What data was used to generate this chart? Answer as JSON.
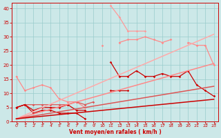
{
  "xlabel": "Vent moyen/en rafales ( km/h )",
  "bg_color": "#cce8e8",
  "grid_color": "#99cccc",
  "x": [
    0,
    1,
    2,
    3,
    4,
    5,
    6,
    7,
    8,
    9,
    10,
    11,
    12,
    13,
    14,
    15,
    16,
    17,
    18,
    19,
    20,
    21,
    22,
    23
  ],
  "series": [
    {
      "name": "lightest_peak",
      "color": "#ff9999",
      "lw": 0.9,
      "marker": "D",
      "ms": 1.8,
      "y": [
        null,
        null,
        null,
        null,
        null,
        null,
        null,
        null,
        null,
        null,
        null,
        41,
        37,
        32,
        32,
        32,
        null,
        null,
        null,
        null,
        null,
        null,
        null,
        null
      ]
    },
    {
      "name": "light_upper",
      "color": "#ff9999",
      "lw": 0.9,
      "marker": "D",
      "ms": 1.8,
      "y": [
        null,
        null,
        null,
        null,
        null,
        null,
        null,
        null,
        null,
        null,
        null,
        null,
        null,
        null,
        null,
        null,
        null,
        null,
        null,
        null,
        null,
        null,
        null,
        null
      ]
    },
    {
      "name": "med_light_long",
      "color": "#ff8888",
      "lw": 0.9,
      "marker": "D",
      "ms": 1.8,
      "y": [
        null,
        null,
        null,
        null,
        null,
        null,
        null,
        null,
        null,
        null,
        27,
        null,
        null,
        null,
        null,
        null,
        null,
        null,
        null,
        null,
        null,
        null,
        null,
        null
      ]
    },
    {
      "name": "med_light_descend",
      "color": "#ff8888",
      "lw": 0.9,
      "marker": "D",
      "ms": 1.8,
      "y": [
        null,
        null,
        null,
        null,
        null,
        null,
        null,
        null,
        null,
        null,
        null,
        null,
        28,
        29,
        29,
        30,
        29,
        28,
        29,
        null,
        28,
        27,
        27,
        20
      ]
    },
    {
      "name": "med_light_start",
      "color": "#ff8888",
      "lw": 0.9,
      "marker": "D",
      "ms": 1.8,
      "y": [
        16,
        11,
        12,
        13,
        12,
        8,
        7,
        7,
        5,
        null,
        null,
        null,
        null,
        null,
        null,
        null,
        null,
        null,
        null,
        null,
        null,
        null,
        null,
        null
      ]
    },
    {
      "name": "medium_line",
      "color": "#dd5555",
      "lw": 0.9,
      "marker": "D",
      "ms": 1.8,
      "y": [
        5,
        6,
        6,
        6,
        6,
        6,
        6,
        7,
        6,
        7,
        null,
        null,
        null,
        null,
        null,
        null,
        null,
        null,
        null,
        null,
        null,
        null,
        null,
        null
      ]
    },
    {
      "name": "dark_main",
      "color": "#cc0000",
      "lw": 0.9,
      "marker": "D",
      "ms": 1.8,
      "y": [
        5,
        6,
        3,
        4,
        4,
        3,
        3,
        3,
        1,
        null,
        null,
        21,
        16,
        16,
        18,
        16,
        16,
        17,
        16,
        16,
        18,
        13,
        11,
        9
      ]
    },
    {
      "name": "dark_short",
      "color": "#cc0000",
      "lw": 0.9,
      "marker": "D",
      "ms": 1.8,
      "y": [
        5,
        6,
        4,
        5,
        5,
        5,
        6,
        4,
        4,
        null,
        null,
        11,
        11,
        11,
        null,
        null,
        null,
        null,
        null,
        null,
        null,
        null,
        null,
        null
      ]
    },
    {
      "name": "slope_lightest",
      "color": "#ffaaaa",
      "lw": 1.1,
      "marker": null,
      "ms": 0,
      "y": [
        1.0,
        2.3,
        3.6,
        4.9,
        6.2,
        7.5,
        8.8,
        10.1,
        11.4,
        12.7,
        14.0,
        15.3,
        16.6,
        17.9,
        19.2,
        20.5,
        21.8,
        23.1,
        24.4,
        25.7,
        27.0,
        28.3,
        29.6,
        30.9
      ]
    },
    {
      "name": "slope_light",
      "color": "#ff8888",
      "lw": 1.1,
      "marker": null,
      "ms": 0,
      "y": [
        1.0,
        1.85,
        2.7,
        3.55,
        4.4,
        5.25,
        6.1,
        6.95,
        7.8,
        8.65,
        9.5,
        10.35,
        11.2,
        12.05,
        12.9,
        13.75,
        14.6,
        15.45,
        16.3,
        17.15,
        18.0,
        18.85,
        19.7,
        20.55
      ]
    },
    {
      "name": "slope_medium",
      "color": "#dd5555",
      "lw": 1.1,
      "marker": null,
      "ms": 0,
      "y": [
        1.0,
        1.5,
        2.0,
        2.5,
        3.0,
        3.5,
        4.0,
        4.5,
        5.0,
        5.5,
        6.0,
        6.5,
        7.0,
        7.5,
        8.0,
        8.5,
        9.0,
        9.5,
        10.0,
        10.5,
        11.0,
        11.5,
        12.0,
        12.5
      ]
    },
    {
      "name": "slope_dark",
      "color": "#cc0000",
      "lw": 1.1,
      "marker": null,
      "ms": 0,
      "y": [
        1.0,
        1.3,
        1.6,
        1.9,
        2.2,
        2.5,
        2.8,
        3.1,
        3.4,
        3.7,
        4.0,
        4.3,
        4.6,
        4.9,
        5.2,
        5.5,
        5.8,
        6.1,
        6.4,
        6.7,
        7.0,
        7.3,
        7.6,
        7.9
      ]
    }
  ],
  "ylim": [
    0,
    42
  ],
  "xlim": [
    -0.5,
    23.5
  ],
  "yticks": [
    0,
    5,
    10,
    15,
    20,
    25,
    30,
    35,
    40
  ],
  "xticks": [
    0,
    1,
    2,
    3,
    4,
    5,
    6,
    7,
    8,
    9,
    10,
    11,
    12,
    13,
    14,
    15,
    16,
    17,
    18,
    19,
    20,
    21,
    22,
    23
  ]
}
